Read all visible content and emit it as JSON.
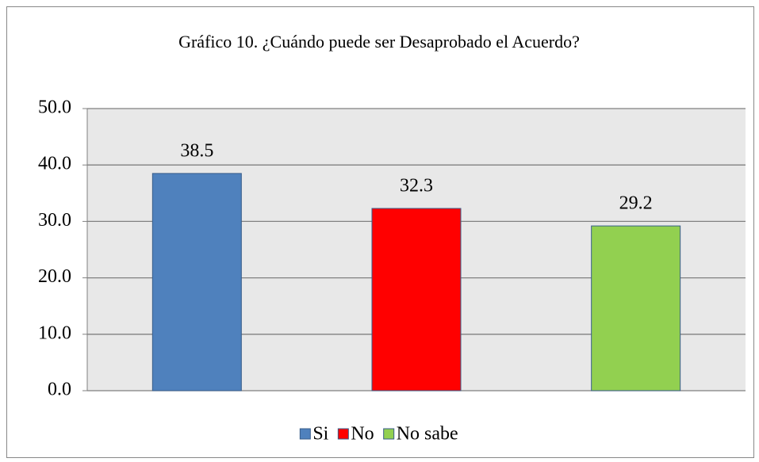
{
  "chart_data": {
    "type": "bar",
    "title": "Gráfico 10. ¿Cuándo puede ser Desaprobado el Acuerdo?",
    "categories": [
      "Si",
      "No",
      "No sabe"
    ],
    "values": [
      38.5,
      32.3,
      29.2
    ],
    "colors": [
      "#4f81bd",
      "#ff0000",
      "#92d050"
    ],
    "ylim": [
      0,
      50
    ],
    "yticks": [
      {
        "value": 0,
        "label": "0.0"
      },
      {
        "value": 10,
        "label": "10.0"
      },
      {
        "value": 20,
        "label": "20.0"
      },
      {
        "value": 30,
        "label": "30.0"
      },
      {
        "value": 40,
        "label": "40.0"
      },
      {
        "value": 50,
        "label": "50.0"
      }
    ],
    "grid": true,
    "legend": "bottom"
  }
}
